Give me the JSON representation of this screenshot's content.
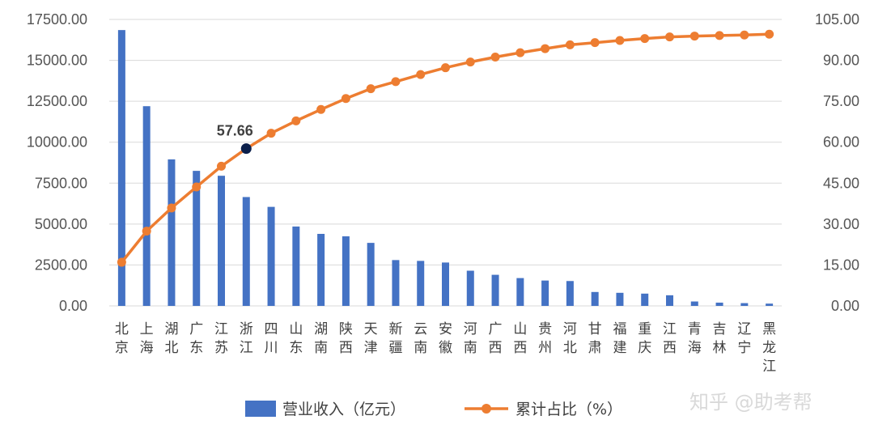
{
  "chart_data": {
    "type": "bar+line",
    "categories": [
      "北京",
      "上海",
      "湖北",
      "广东",
      "江苏",
      "浙江",
      "四川",
      "山东",
      "湖南",
      "陕西",
      "天津",
      "新疆",
      "云南",
      "安徽",
      "河南",
      "广西",
      "山西",
      "贵州",
      "河北",
      "甘肃",
      "福建",
      "重庆",
      "江西",
      "青海",
      "吉林",
      "辽宁",
      "黑龙江"
    ],
    "series": [
      {
        "name": "营业收入（亿元）",
        "type": "bar",
        "axis": "left",
        "color": "#4472C4",
        "values": [
          16850,
          12200,
          8950,
          8250,
          7950,
          6650,
          6050,
          4850,
          4400,
          4250,
          3850,
          2800,
          2750,
          2650,
          2150,
          1900,
          1700,
          1550,
          1520,
          850,
          800,
          750,
          650,
          270,
          200,
          170,
          140
        ]
      },
      {
        "name": "累计占比（%）",
        "type": "line",
        "axis": "right",
        "color": "#ED7D31",
        "values": [
          16.0,
          27.4,
          35.9,
          43.6,
          51.2,
          57.66,
          63.3,
          67.8,
          72.0,
          76.0,
          79.6,
          82.2,
          84.8,
          87.3,
          89.4,
          91.2,
          92.8,
          94.3,
          95.7,
          96.5,
          97.3,
          98.0,
          98.6,
          98.9,
          99.1,
          99.3,
          99.6
        ]
      }
    ],
    "y_left": {
      "lim": [
        0,
        17500
      ],
      "ticks": [
        0,
        2500,
        5000,
        7500,
        10000,
        12500,
        15000,
        17500
      ],
      "tick_labels": [
        "0.00",
        "2500.00",
        "5000.00",
        "7500.00",
        "10000.00",
        "12500.00",
        "15000.00",
        "17500.00"
      ]
    },
    "y_right": {
      "lim": [
        0,
        105
      ],
      "ticks": [
        0,
        15,
        30,
        45,
        60,
        75,
        90,
        105
      ],
      "tick_labels": [
        "0.00",
        "15.00",
        "30.00",
        "45.00",
        "60.00",
        "75.00",
        "90.00",
        "105.00"
      ]
    },
    "annotation": {
      "index": 5,
      "series": 1,
      "text": "57.66",
      "marker_color": "#0B1F4B"
    },
    "grid": true,
    "legend": "bottom"
  },
  "watermark": "知乎 @助考帮"
}
